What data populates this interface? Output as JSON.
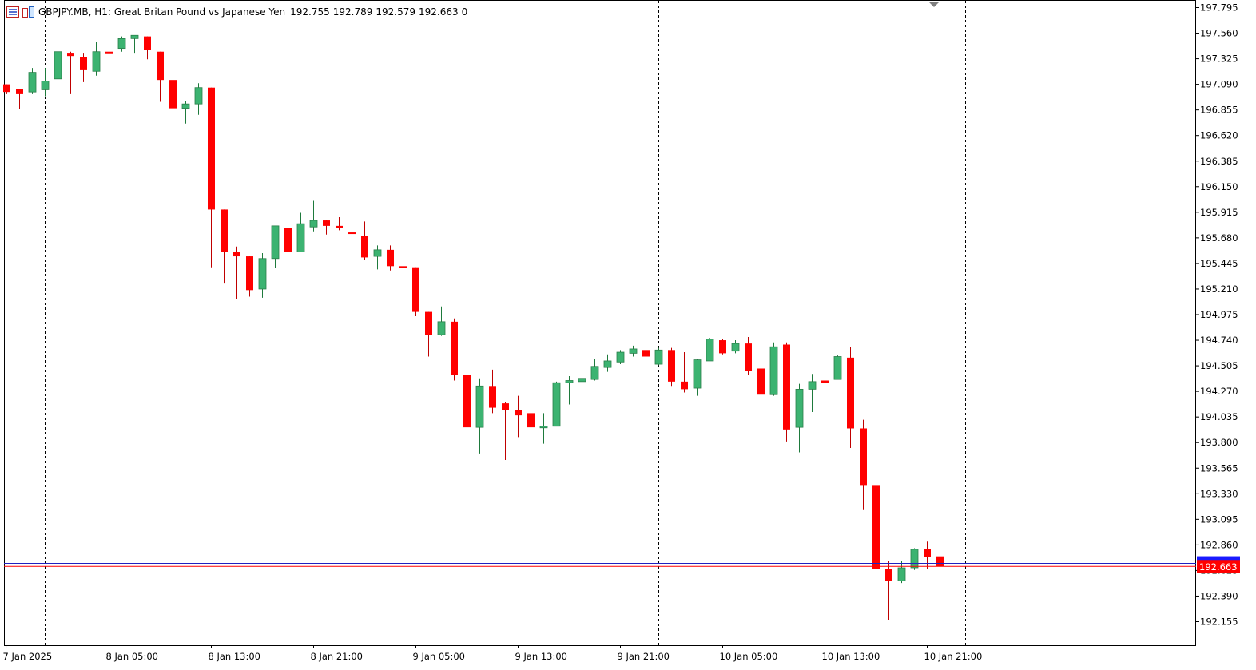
{
  "header": {
    "symbol": "GBPJPY.MB, H1:",
    "description": "Great Britan Pound vs Japanese Yen",
    "open": "192.755",
    "high": "192.789",
    "low": "192.579",
    "close": "192.663",
    "volume": "0"
  },
  "colors": {
    "bull": "#3cb371",
    "bear": "#ff0000",
    "wick_bull": "#1e7a3c",
    "wick_bear": "#c00000",
    "bid_line": "#ff0000",
    "ask_line": "#2020c0",
    "grid": "#000000"
  },
  "chart_data": {
    "type": "candlestick",
    "timeframe": "H1",
    "ylim": [
      192.0,
      197.85
    ],
    "y_ticks": [
      "197.795",
      "197.560",
      "197.325",
      "197.090",
      "196.855",
      "196.620",
      "196.385",
      "196.150",
      "195.915",
      "195.680",
      "195.445",
      "195.210",
      "194.975",
      "194.740",
      "194.505",
      "194.270",
      "194.035",
      "193.800",
      "193.565",
      "193.330",
      "193.095",
      "192.860",
      "192.625",
      "192.390",
      "192.155"
    ],
    "x_labels": [
      {
        "index": -0.06,
        "label": "7 Jan 2025"
      },
      {
        "index": 8,
        "label": "8 Jan 05:00"
      },
      {
        "index": 16,
        "label": "8 Jan 13:00"
      },
      {
        "index": 24,
        "label": "8 Jan 21:00"
      },
      {
        "index": 32,
        "label": "9 Jan 05:00"
      },
      {
        "index": 40,
        "label": "9 Jan 13:00"
      },
      {
        "index": 48,
        "label": "9 Jan 21:00"
      },
      {
        "index": 56,
        "label": "10 Jan 05:00"
      },
      {
        "index": 64,
        "label": "10 Jan 13:00"
      },
      {
        "index": 72,
        "label": "10 Jan 21:00"
      }
    ],
    "day_separators": [
      2.94,
      26.94,
      50.94,
      74.94
    ],
    "bid_price": "192.663",
    "ask_price": 192.69,
    "candles": [
      {
        "o": 197.09,
        "h": 197.09,
        "l": 197.0,
        "c": 197.02
      },
      {
        "o": 197.05,
        "h": 197.05,
        "l": 196.86,
        "c": 197.0
      },
      {
        "o": 197.02,
        "h": 197.24,
        "l": 197.0,
        "c": 197.2
      },
      {
        "o": 197.04,
        "h": 197.24,
        "l": 196.98,
        "c": 197.12
      },
      {
        "o": 197.14,
        "h": 197.43,
        "l": 197.1,
        "c": 197.39
      },
      {
        "o": 197.38,
        "h": 197.39,
        "l": 197.0,
        "c": 197.35
      },
      {
        "o": 197.34,
        "h": 197.38,
        "l": 197.11,
        "c": 197.22
      },
      {
        "o": 197.21,
        "h": 197.48,
        "l": 197.17,
        "c": 197.39
      },
      {
        "o": 197.39,
        "h": 197.51,
        "l": 197.37,
        "c": 197.38
      },
      {
        "o": 197.42,
        "h": 197.53,
        "l": 197.39,
        "c": 197.51
      },
      {
        "o": 197.51,
        "h": 197.54,
        "l": 197.38,
        "c": 197.54
      },
      {
        "o": 197.53,
        "h": 197.53,
        "l": 197.32,
        "c": 197.41
      },
      {
        "o": 197.39,
        "h": 197.39,
        "l": 196.93,
        "c": 197.13
      },
      {
        "o": 197.13,
        "h": 197.24,
        "l": 196.87,
        "c": 196.87
      },
      {
        "o": 196.87,
        "h": 196.94,
        "l": 196.73,
        "c": 196.91
      },
      {
        "o": 196.91,
        "h": 197.1,
        "l": 196.81,
        "c": 197.06
      },
      {
        "o": 197.06,
        "h": 197.06,
        "l": 195.41,
        "c": 195.94
      },
      {
        "o": 195.94,
        "h": 195.94,
        "l": 195.26,
        "c": 195.55
      },
      {
        "o": 195.55,
        "h": 195.6,
        "l": 195.12,
        "c": 195.51
      },
      {
        "o": 195.51,
        "h": 195.51,
        "l": 195.14,
        "c": 195.2
      },
      {
        "o": 195.21,
        "h": 195.54,
        "l": 195.13,
        "c": 195.49
      },
      {
        "o": 195.49,
        "h": 195.79,
        "l": 195.4,
        "c": 195.79
      },
      {
        "o": 195.77,
        "h": 195.84,
        "l": 195.51,
        "c": 195.55
      },
      {
        "o": 195.55,
        "h": 195.91,
        "l": 195.55,
        "c": 195.81
      },
      {
        "o": 195.78,
        "h": 196.02,
        "l": 195.74,
        "c": 195.84
      },
      {
        "o": 195.84,
        "h": 195.84,
        "l": 195.71,
        "c": 195.79
      },
      {
        "o": 195.79,
        "h": 195.87,
        "l": 195.75,
        "c": 195.77
      },
      {
        "o": 195.73,
        "h": 195.73,
        "l": 195.73,
        "c": 195.72
      },
      {
        "o": 195.7,
        "h": 195.83,
        "l": 195.48,
        "c": 195.5
      },
      {
        "o": 195.51,
        "h": 195.61,
        "l": 195.39,
        "c": 195.57
      },
      {
        "o": 195.57,
        "h": 195.61,
        "l": 195.38,
        "c": 195.42
      },
      {
        "o": 195.42,
        "h": 195.43,
        "l": 195.36,
        "c": 195.41
      },
      {
        "o": 195.41,
        "h": 195.41,
        "l": 194.96,
        "c": 195.0
      },
      {
        "o": 195.0,
        "h": 195.0,
        "l": 194.59,
        "c": 194.79
      },
      {
        "o": 194.79,
        "h": 195.05,
        "l": 194.78,
        "c": 194.91
      },
      {
        "o": 194.91,
        "h": 194.94,
        "l": 194.37,
        "c": 194.42
      },
      {
        "o": 194.42,
        "h": 194.7,
        "l": 193.76,
        "c": 193.94
      },
      {
        "o": 193.94,
        "h": 194.39,
        "l": 193.7,
        "c": 194.32
      },
      {
        "o": 194.32,
        "h": 194.47,
        "l": 194.07,
        "c": 194.12
      },
      {
        "o": 194.16,
        "h": 194.17,
        "l": 193.64,
        "c": 194.1
      },
      {
        "o": 194.1,
        "h": 194.23,
        "l": 193.85,
        "c": 194.05
      },
      {
        "o": 194.07,
        "h": 194.08,
        "l": 193.48,
        "c": 193.94
      },
      {
        "o": 193.94,
        "h": 194.07,
        "l": 193.79,
        "c": 193.95
      },
      {
        "o": 193.95,
        "h": 194.36,
        "l": 193.95,
        "c": 194.35
      },
      {
        "o": 194.35,
        "h": 194.41,
        "l": 194.15,
        "c": 194.37
      },
      {
        "o": 194.36,
        "h": 194.4,
        "l": 194.07,
        "c": 194.39
      },
      {
        "o": 194.38,
        "h": 194.57,
        "l": 194.37,
        "c": 194.5
      },
      {
        "o": 194.49,
        "h": 194.61,
        "l": 194.45,
        "c": 194.55
      },
      {
        "o": 194.54,
        "h": 194.65,
        "l": 194.52,
        "c": 194.63
      },
      {
        "o": 194.62,
        "h": 194.69,
        "l": 194.59,
        "c": 194.66
      },
      {
        "o": 194.65,
        "h": 194.66,
        "l": 194.57,
        "c": 194.59
      },
      {
        "o": 194.52,
        "h": 194.67,
        "l": 194.51,
        "c": 194.65
      },
      {
        "o": 194.65,
        "h": 194.67,
        "l": 194.32,
        "c": 194.36
      },
      {
        "o": 194.36,
        "h": 194.63,
        "l": 194.26,
        "c": 194.29
      },
      {
        "o": 194.3,
        "h": 194.57,
        "l": 194.23,
        "c": 194.56
      },
      {
        "o": 194.55,
        "h": 194.76,
        "l": 194.55,
        "c": 194.75
      },
      {
        "o": 194.74,
        "h": 194.75,
        "l": 194.61,
        "c": 194.62
      },
      {
        "o": 194.64,
        "h": 194.74,
        "l": 194.62,
        "c": 194.71
      },
      {
        "o": 194.71,
        "h": 194.77,
        "l": 194.42,
        "c": 194.46
      },
      {
        "o": 194.48,
        "h": 194.48,
        "l": 194.24,
        "c": 194.24
      },
      {
        "o": 194.24,
        "h": 194.72,
        "l": 194.23,
        "c": 194.68
      },
      {
        "o": 194.7,
        "h": 194.72,
        "l": 193.81,
        "c": 193.92
      },
      {
        "o": 193.94,
        "h": 194.34,
        "l": 193.71,
        "c": 194.29
      },
      {
        "o": 194.29,
        "h": 194.43,
        "l": 194.08,
        "c": 194.36
      },
      {
        "o": 194.37,
        "h": 194.58,
        "l": 194.2,
        "c": 194.35
      },
      {
        "o": 194.38,
        "h": 194.6,
        "l": 194.38,
        "c": 194.59
      },
      {
        "o": 194.58,
        "h": 194.68,
        "l": 193.75,
        "c": 193.93
      },
      {
        "o": 193.93,
        "h": 194.01,
        "l": 193.18,
        "c": 193.41
      },
      {
        "o": 193.41,
        "h": 193.55,
        "l": 192.64,
        "c": 192.64
      },
      {
        "o": 192.64,
        "h": 192.71,
        "l": 192.17,
        "c": 192.53
      },
      {
        "o": 192.53,
        "h": 192.71,
        "l": 192.51,
        "c": 192.65
      },
      {
        "o": 192.65,
        "h": 192.83,
        "l": 192.63,
        "c": 192.82
      },
      {
        "o": 192.82,
        "h": 192.89,
        "l": 192.64,
        "c": 192.75
      },
      {
        "o": 192.755,
        "h": 192.789,
        "l": 192.579,
        "c": 192.663
      }
    ]
  }
}
